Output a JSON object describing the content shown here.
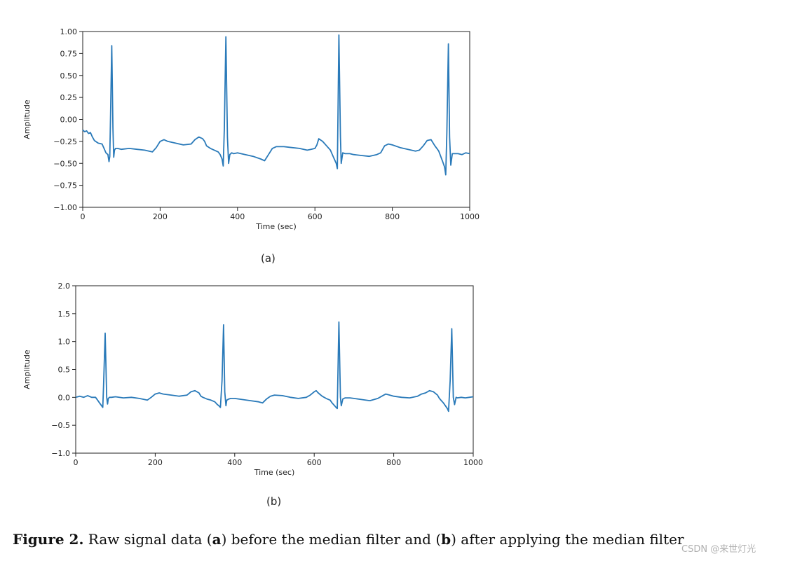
{
  "chart_data": [
    {
      "type": "line",
      "panel_label": "(a)",
      "xlabel": "Time (sec)",
      "ylabel": "Amplitude",
      "xlim": [
        0,
        1000
      ],
      "ylim": [
        -1.0,
        1.0
      ],
      "xticks": [
        "0",
        "200",
        "400",
        "600",
        "800",
        "1000"
      ],
      "yticks": [
        "1.00",
        "0.75",
        "0.50",
        "0.25",
        "0.00",
        "−0.25",
        "−0.50",
        "−0.75",
        "−1.00"
      ],
      "grid": false,
      "color": "#2a7ab9",
      "series": [
        {
          "x": [
            0,
            5,
            10,
            15,
            20,
            25,
            30,
            40,
            50,
            55,
            60,
            65,
            68,
            70,
            72,
            75,
            78,
            80,
            82,
            85,
            90,
            100,
            120,
            140,
            160,
            180,
            190,
            200,
            210,
            220,
            240,
            260,
            280,
            290,
            300,
            310,
            315,
            320,
            330,
            340,
            350,
            355,
            360,
            363,
            366,
            370,
            374,
            377,
            380,
            385,
            390,
            400,
            420,
            440,
            460,
            470,
            480,
            490,
            500,
            520,
            540,
            560,
            580,
            590,
            600,
            605,
            610,
            620,
            630,
            640,
            645,
            650,
            655,
            658,
            662,
            666,
            668,
            672,
            678,
            690,
            700,
            720,
            740,
            760,
            770,
            780,
            790,
            800,
            820,
            840,
            860,
            870,
            880,
            890,
            900,
            910,
            915,
            920,
            925,
            930,
            935,
            938,
            941,
            945,
            948,
            951,
            955,
            960,
            970,
            980,
            990,
            1000
          ],
          "y": [
            -0.12,
            -0.14,
            -0.13,
            -0.16,
            -0.15,
            -0.2,
            -0.24,
            -0.27,
            -0.28,
            -0.33,
            -0.38,
            -0.4,
            -0.48,
            -0.42,
            0.05,
            0.84,
            -0.1,
            -0.43,
            -0.35,
            -0.33,
            -0.33,
            -0.34,
            -0.33,
            -0.34,
            -0.35,
            -0.37,
            -0.32,
            -0.25,
            -0.23,
            -0.25,
            -0.27,
            -0.29,
            -0.28,
            -0.23,
            -0.2,
            -0.22,
            -0.25,
            -0.3,
            -0.33,
            -0.35,
            -0.37,
            -0.4,
            -0.45,
            -0.53,
            -0.1,
            0.94,
            -0.2,
            -0.5,
            -0.4,
            -0.38,
            -0.39,
            -0.38,
            -0.4,
            -0.42,
            -0.45,
            -0.47,
            -0.4,
            -0.33,
            -0.31,
            -0.31,
            -0.32,
            -0.33,
            -0.35,
            -0.34,
            -0.33,
            -0.29,
            -0.22,
            -0.25,
            -0.3,
            -0.35,
            -0.4,
            -0.45,
            -0.5,
            -0.56,
            0.96,
            -0.2,
            -0.5,
            -0.38,
            -0.39,
            -0.39,
            -0.4,
            -0.41,
            -0.42,
            -0.4,
            -0.38,
            -0.3,
            -0.28,
            -0.29,
            -0.32,
            -0.34,
            -0.36,
            -0.35,
            -0.3,
            -0.24,
            -0.23,
            -0.3,
            -0.33,
            -0.36,
            -0.42,
            -0.48,
            -0.54,
            -0.63,
            -0.15,
            0.86,
            -0.2,
            -0.52,
            -0.39,
            -0.39,
            -0.39,
            -0.4,
            -0.38,
            -0.39
          ]
        }
      ]
    },
    {
      "type": "line",
      "panel_label": "(b)",
      "xlabel": "Time (sec)",
      "ylabel": "Amplitude",
      "xlim": [
        0,
        1000
      ],
      "ylim": [
        -1.0,
        2.0
      ],
      "xticks": [
        "0",
        "200",
        "400",
        "600",
        "800",
        "1000"
      ],
      "yticks": [
        "2.0",
        "1.5",
        "1.0",
        "0.5",
        "0.0",
        "−0.5",
        "−1.0"
      ],
      "grid": false,
      "color": "#2a7ab9",
      "series": [
        {
          "x": [
            0,
            10,
            20,
            30,
            40,
            50,
            55,
            60,
            65,
            68,
            70,
            74,
            78,
            80,
            82,
            85,
            90,
            100,
            120,
            140,
            160,
            180,
            190,
            200,
            210,
            220,
            240,
            260,
            280,
            290,
            300,
            310,
            315,
            320,
            330,
            340,
            350,
            355,
            360,
            364,
            368,
            372,
            375,
            378,
            380,
            385,
            390,
            400,
            420,
            440,
            460,
            470,
            480,
            490,
            500,
            520,
            540,
            560,
            580,
            590,
            600,
            605,
            610,
            620,
            630,
            640,
            645,
            650,
            655,
            658,
            662,
            666,
            668,
            672,
            678,
            690,
            700,
            720,
            740,
            760,
            770,
            780,
            790,
            800,
            820,
            840,
            860,
            870,
            880,
            890,
            900,
            910,
            915,
            920,
            925,
            930,
            935,
            938,
            942,
            946,
            950,
            953,
            957,
            960,
            970,
            980,
            990,
            1000
          ],
          "y": [
            0.0,
            0.02,
            0.0,
            0.03,
            0.0,
            0.0,
            -0.05,
            -0.1,
            -0.15,
            -0.18,
            0.2,
            1.15,
            0.0,
            -0.12,
            -0.02,
            0.0,
            0.0,
            0.01,
            -0.01,
            0.0,
            -0.02,
            -0.05,
            0.0,
            0.06,
            0.08,
            0.06,
            0.04,
            0.02,
            0.04,
            0.1,
            0.12,
            0.08,
            0.02,
            0.0,
            -0.03,
            -0.05,
            -0.08,
            -0.12,
            -0.15,
            -0.18,
            0.3,
            1.3,
            0.1,
            -0.15,
            -0.05,
            -0.03,
            -0.02,
            -0.02,
            -0.04,
            -0.06,
            -0.08,
            -0.1,
            -0.03,
            0.02,
            0.04,
            0.03,
            0.0,
            -0.02,
            0.0,
            0.04,
            0.1,
            0.12,
            0.08,
            0.02,
            -0.02,
            -0.05,
            -0.1,
            -0.14,
            -0.18,
            -0.2,
            1.35,
            0.0,
            -0.15,
            -0.03,
            -0.01,
            -0.01,
            -0.02,
            -0.04,
            -0.06,
            -0.02,
            0.02,
            0.06,
            0.04,
            0.02,
            0.0,
            -0.01,
            0.02,
            0.06,
            0.08,
            0.12,
            0.1,
            0.04,
            -0.02,
            -0.06,
            -0.1,
            -0.15,
            -0.2,
            -0.25,
            0.3,
            1.23,
            0.0,
            -0.13,
            0.0,
            -0.01,
            0.0,
            -0.01,
            0.0,
            0.01
          ]
        }
      ]
    }
  ],
  "caption": {
    "prefix": "Figure 2.",
    "part1": " Raw signal data (",
    "a": "a",
    "part2": ") before the median filter and (",
    "b": "b",
    "part3": ") after applying the median filter"
  },
  "watermark": "CSDN @来世灯光"
}
